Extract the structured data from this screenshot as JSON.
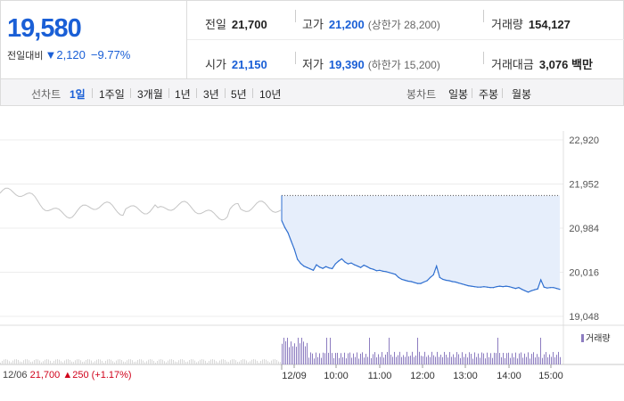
{
  "price": {
    "current": "19,580",
    "diff_label": "전일대비",
    "diff_arrow": "▼",
    "diff_value": "2,120",
    "diff_rate": "−9.77%"
  },
  "quote": {
    "prev_label": "전일",
    "prev_value": "21,700",
    "high_label": "고가",
    "high_value": "21,200",
    "upper_limit": "(상한가 28,200)",
    "volume_label": "거래량",
    "volume_value": "154,127",
    "open_label": "시가",
    "open_value": "21,150",
    "low_label": "저가",
    "low_value": "19,390",
    "lower_limit": "(하한가 15,200)",
    "amount_label": "거래대금",
    "amount_value": "3,076 백만"
  },
  "tabs": {
    "line_label": "선차트",
    "line_tabs": [
      "1일",
      "1주일",
      "3개월",
      "1년",
      "3년",
      "5년",
      "10년"
    ],
    "candle_label": "봉차트",
    "candle_tabs": [
      "일봉",
      "주봉",
      "월봉"
    ]
  },
  "chart_data": {
    "type": "line",
    "ylim": [
      19048,
      22920
    ],
    "yticks": [
      "22,920",
      "21,952",
      "20,984",
      "20,016",
      "19,048"
    ],
    "xticks": [
      "12/09",
      "10:00",
      "11:00",
      "12:00",
      "13:00",
      "14:00",
      "15:00"
    ],
    "prev_close": 21700,
    "series": [
      {
        "values": [
          21150,
          21000,
          20880,
          20700,
          20520,
          20300,
          20210,
          20150,
          20120,
          20090,
          20060,
          20180,
          20130,
          20100,
          20140,
          20110,
          20095,
          20200,
          20260,
          20310,
          20240,
          20200,
          20220,
          20180,
          20150,
          20120,
          20170,
          20140,
          20100,
          20080,
          20050,
          20060,
          20040,
          20030,
          20010,
          19990,
          19970,
          19900,
          19860,
          19840,
          19820,
          19810,
          19790,
          19770,
          19770,
          19800,
          19830,
          19900,
          19960,
          20150,
          19900,
          19860,
          19840,
          19830,
          19810,
          19800,
          19780,
          19760,
          19740,
          19720,
          19710,
          19700,
          19690,
          19690,
          19700,
          19690,
          19680,
          19680,
          19700,
          19710,
          19700,
          19710,
          19700,
          19680,
          19660,
          19680,
          19640,
          19610,
          19580,
          19610,
          19630,
          19650,
          19850,
          19690,
          19670,
          19680,
          19680,
          19660,
          19640
        ]
      }
    ],
    "volume_legend": "거래량",
    "prev_day": {
      "date": "12/06",
      "close": "21,700",
      "arrow": "▲",
      "change": "250",
      "rate": "(+1.17%)"
    }
  },
  "colors": {
    "up": "#d0021b",
    "down": "#1a5fd6",
    "line": "#2f6fd0",
    "fill": "#e6eefb",
    "prev_line": "#c4c4c4",
    "volume": "#8c7cc0"
  }
}
